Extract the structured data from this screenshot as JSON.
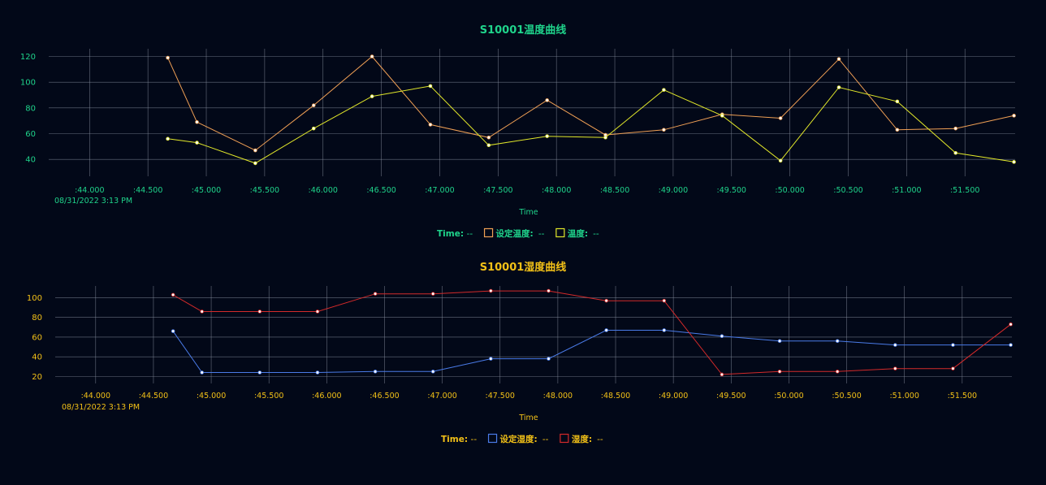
{
  "chart_data": [
    {
      "type": "line",
      "title": "S10001温度曲线",
      "xlabel": "Time",
      "date_label": "08/31/2022 3:13 PM",
      "theme_color": "#1fd38b",
      "x_ticks": [
        ":44.000",
        ":44.500",
        ":45.000",
        ":45.500",
        ":46.000",
        ":46.500",
        ":47.000",
        ":47.500",
        ":48.000",
        ":48.500",
        ":49.000",
        ":49.500",
        ":50.000",
        ":50.500",
        ":51.000",
        ":51.500"
      ],
      "x_tick_values": [
        44.0,
        44.5,
        45.0,
        45.5,
        46.0,
        46.5,
        47.0,
        47.5,
        48.0,
        48.5,
        49.0,
        49.5,
        50.0,
        50.5,
        51.0,
        51.5
      ],
      "y_ticks": [
        40,
        60,
        80,
        100,
        120
      ],
      "grid": true,
      "legend": {
        "time_label": "Time:",
        "time_value": "--",
        "items": [
          {
            "label": "设定温度:",
            "value": "--",
            "color": "#f0a055"
          },
          {
            "label": "温度:",
            "value": "--",
            "color": "#e2e82a"
          }
        ]
      },
      "series": [
        {
          "name": "设定温度",
          "color": "#f0a055",
          "x": [
            44.67,
            44.92,
            45.42,
            45.92,
            46.42,
            46.92,
            47.42,
            47.92,
            48.42,
            48.92,
            49.42,
            49.92,
            50.42,
            50.92,
            51.42,
            51.92
          ],
          "y": [
            119,
            69,
            47,
            82,
            120,
            67,
            57,
            86,
            59,
            63,
            75,
            72,
            118,
            63,
            64,
            74
          ]
        },
        {
          "name": "温度",
          "color": "#e2e82a",
          "x": [
            44.67,
            44.92,
            45.42,
            45.92,
            46.42,
            46.92,
            47.42,
            47.92,
            48.42,
            48.92,
            49.42,
            49.92,
            50.42,
            50.92,
            51.42,
            51.92
          ],
          "y": [
            56,
            53,
            37,
            64,
            89,
            97,
            51,
            58,
            57,
            94,
            74,
            39,
            96,
            85,
            45,
            38
          ]
        }
      ]
    },
    {
      "type": "line",
      "title": "S10001湿度曲线",
      "xlabel": "Time",
      "date_label": "08/31/2022 3:13 PM",
      "theme_color": "#f2c017",
      "x_ticks": [
        ":44.000",
        ":44.500",
        ":45.000",
        ":45.500",
        ":46.000",
        ":46.500",
        ":47.000",
        ":47.500",
        ":48.000",
        ":48.500",
        ":49.000",
        ":49.500",
        ":50.000",
        ":50.500",
        ":51.000",
        ":51.500"
      ],
      "x_tick_values": [
        44.0,
        44.5,
        45.0,
        45.5,
        46.0,
        46.5,
        47.0,
        47.5,
        48.0,
        48.5,
        49.0,
        49.5,
        50.0,
        50.5,
        51.0,
        51.5
      ],
      "y_ticks": [
        20,
        40,
        60,
        80,
        100
      ],
      "grid": true,
      "legend": {
        "time_label": "Time:",
        "time_value": "--",
        "items": [
          {
            "label": "设定湿度:",
            "value": "--",
            "color": "#4a7be8"
          },
          {
            "label": "湿度:",
            "value": "--",
            "color": "#d42a2a"
          }
        ]
      },
      "series": [
        {
          "name": "设定湿度",
          "color": "#4a7be8",
          "x": [
            44.67,
            44.92,
            45.42,
            45.92,
            46.42,
            46.92,
            47.42,
            47.92,
            48.42,
            48.92,
            49.42,
            49.92,
            50.42,
            50.92,
            51.42,
            51.92
          ],
          "y": [
            66,
            24,
            24,
            24,
            25,
            25,
            38,
            38,
            67,
            67,
            61,
            56,
            56,
            52,
            52,
            52
          ]
        },
        {
          "name": "湿度",
          "color": "#d42a2a",
          "x": [
            44.67,
            44.92,
            45.42,
            45.92,
            46.42,
            46.92,
            47.42,
            47.92,
            48.42,
            48.92,
            49.42,
            49.92,
            50.42,
            50.92,
            51.42,
            51.92
          ],
          "y": [
            103,
            86,
            86,
            86,
            104,
            104,
            107,
            107,
            97,
            97,
            22,
            25,
            25,
            28,
            28,
            73
          ]
        }
      ]
    }
  ]
}
